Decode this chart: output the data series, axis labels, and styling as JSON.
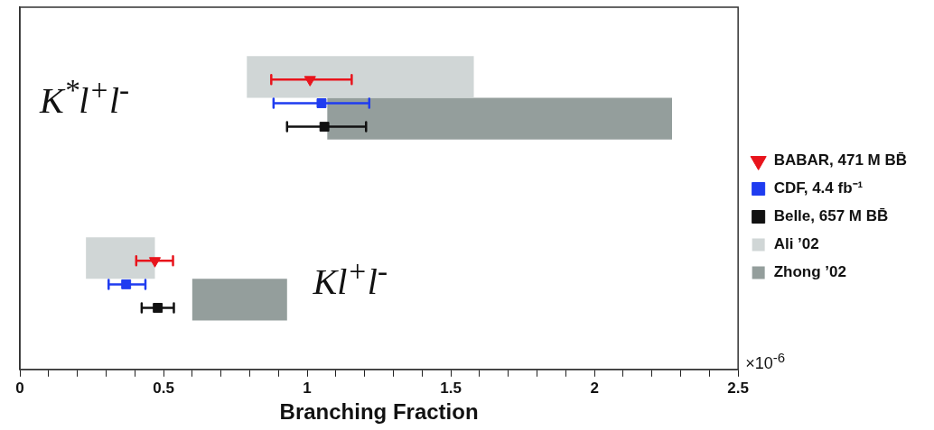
{
  "chart_data": {
    "type": "scatter",
    "orientation": "horizontal",
    "xlabel": "Branching Fraction",
    "categories": [
      null,
      null
    ],
    "annotations": [
      "K$^{*}$l$^{+}$l$^{-}$",
      "Kl$^{+}$l$^{-}$",
      "×10$^{-6}$"
    ],
    "xlim": [
      0,
      2.5
    ],
    "xticks": [
      0,
      {
        "value": 0.1,
        "label": null
      },
      {
        "value": 0.2,
        "label": null
      },
      {
        "value": 0.3,
        "label": null
      },
      {
        "value": 0.4,
        "label": null
      },
      0.5,
      {
        "value": 0.6,
        "label": null
      },
      {
        "value": 0.7,
        "label": null
      },
      {
        "value": 0.8,
        "label": null
      },
      {
        "value": 0.9,
        "label": null
      },
      1,
      {
        "value": 1.1,
        "label": null
      },
      {
        "value": 1.2,
        "label": null
      },
      {
        "value": 1.3,
        "label": null
      },
      {
        "value": 1.4,
        "label": null
      },
      1.5,
      {
        "value": 1.6,
        "label": null
      },
      {
        "value": 1.7,
        "label": null
      },
      {
        "value": 1.8,
        "label": null
      },
      {
        "value": 1.9,
        "label": null
      },
      2,
      {
        "value": 2.1,
        "label": null
      },
      {
        "value": 2.2,
        "label": null
      },
      {
        "value": 2.3,
        "label": null
      },
      {
        "value": 2.4,
        "label": null
      },
      2.5
    ],
    "tick_labels": "x",
    "grid": false,
    "legend": "right",
    "series": [
      {
        "name": "BABAR, 471 M BB̄",
        "marker": "triangle",
        "color": "#e8141c",
        "values": [
          1.01,
          0.47
        ],
        "errors": [
          [
            0.875,
            1.155
          ],
          [
            0.405,
            0.533
          ]
        ]
      },
      {
        "name": "CDF, 4.4 fb⁻¹",
        "marker": "square",
        "color": "#1f3cf0",
        "values": [
          1.05,
          0.37
        ],
        "errors": [
          [
            0.883,
            1.216
          ],
          [
            0.309,
            0.437
          ]
        ]
      },
      {
        "name": "Belle, 657 M BB̄",
        "marker": "square",
        "color": "#111111",
        "values": [
          1.06,
          0.48
        ],
        "errors": [
          [
            0.93,
            1.205
          ],
          [
            0.424,
            0.536
          ]
        ]
      },
      {
        "name": "Ali ’02",
        "type": "bar",
        "color": "#d0d6d6",
        "base": [
          0.79,
          0.23
        ],
        "values": [
          0.79,
          0.24
        ]
      },
      {
        "name": "Zhong ’02",
        "type": "bar",
        "color": "#949e9c",
        "base": [
          1.07,
          0.6
        ],
        "values": [
          1.2,
          0.33
        ]
      }
    ]
  }
}
